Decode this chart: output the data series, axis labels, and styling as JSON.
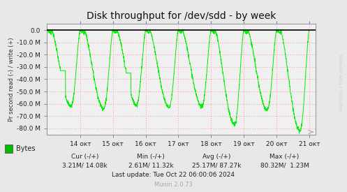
{
  "title": "Disk throughput for /dev/sdd - by week",
  "ylabel": "Pr second read (-) / write (+)",
  "background_color": "#e8e8e8",
  "plot_bg_color": "#f0f0f0",
  "line_color": "#00ee00",
  "grid_color": "#ffaaaa",
  "top_tick_color": "#7777ff",
  "ylim": [
    -85000000,
    5000000
  ],
  "yticks": [
    0.0,
    -10000000,
    -20000000,
    -30000000,
    -40000000,
    -50000000,
    -60000000,
    -70000000,
    -80000000
  ],
  "ytick_labels": [
    "0.0",
    "-10.0 M",
    "-20.0 M",
    "-30.0 M",
    "-40.0 M",
    "-50.0 M",
    "-60.0 M",
    "-70.0 M",
    "-80.0 M"
  ],
  "xtick_labels": [
    "14 окт",
    "15 окт",
    "16 окт",
    "17 окт",
    "18 окт",
    "19 окт",
    "20 окт",
    "21 окт"
  ],
  "legend_label": "Bytes",
  "legend_color": "#00bb00",
  "cur_text": "Cur (-/+)",
  "cur_val": "3.21M/ 14.08k",
  "min_text": "Min (-/+)",
  "min_val": "2.61M/ 11.32k",
  "avg_text": "Avg (-/+)",
  "avg_val": "25.17M/ 87.27k",
  "max_text": "Max (-/+)",
  "max_val": "80.32M/  1.23M",
  "last_update": "Last update: Tue Oct 22 06:00:06 2024",
  "munin_version": "Munin 2.0.73",
  "watermark": "RRDTOOL / TOBI OETIKER"
}
